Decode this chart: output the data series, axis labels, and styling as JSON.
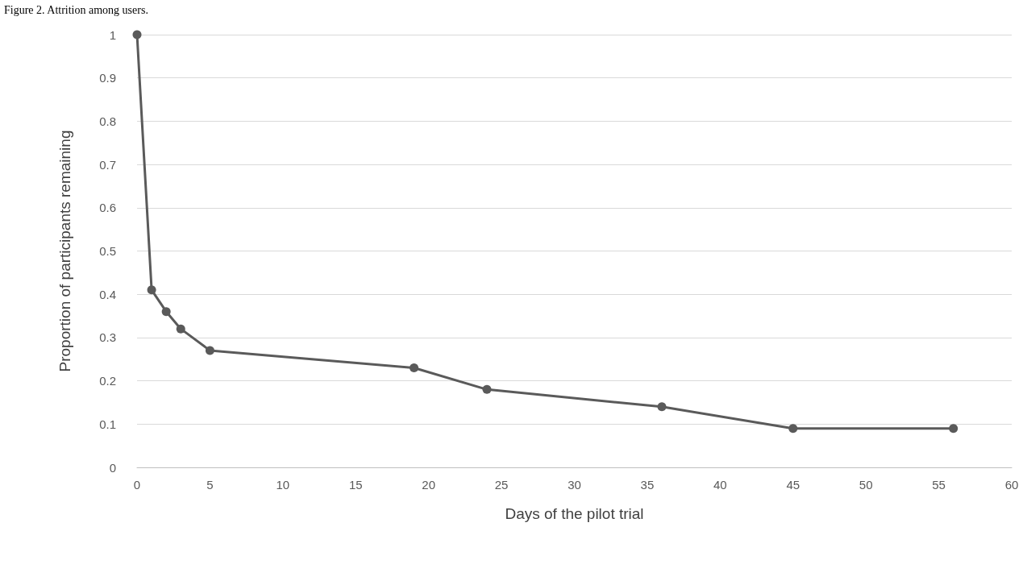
{
  "chart_data": {
    "type": "line",
    "title": "Figure 2. Attrition among users.",
    "xlabel": "Days of the pilot trial",
    "ylabel": "Proportion of participants remaining",
    "x": [
      0,
      1,
      2,
      3,
      5,
      19,
      24,
      36,
      45,
      56
    ],
    "series": [
      {
        "color": "#5a5a5a",
        "values": [
          1,
          0.41,
          0.36,
          0.32,
          0.27,
          0.23,
          0.18,
          0.14,
          0.09,
          0.09
        ]
      }
    ],
    "xlim": [
      0,
      60
    ],
    "xticks": [
      0,
      5,
      10,
      15,
      20,
      25,
      30,
      35,
      40,
      45,
      50,
      55,
      60
    ],
    "ylim": [
      0,
      1
    ],
    "yticks": [
      0,
      0.1,
      0.2,
      0.3,
      0.4,
      0.5,
      0.6,
      0.7,
      0.8,
      0.9,
      1
    ],
    "grid": "y",
    "marker": "circle",
    "line_style": "solid"
  }
}
